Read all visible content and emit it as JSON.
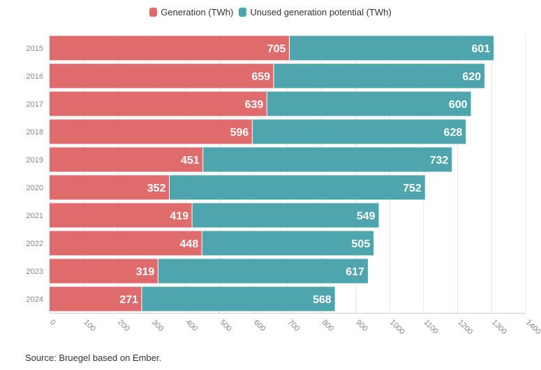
{
  "legend": {
    "generation": "Generation (TWh)",
    "unused": "Unused generation potential (TWh)"
  },
  "colors": {
    "generation": "#e06b6c",
    "unused": "#4fa5ae",
    "axis_text": "#888888",
    "gridline": "#e6e6e6"
  },
  "source": "Source: Bruegel based on Ember.",
  "chart_data": {
    "type": "bar",
    "orientation": "horizontal",
    "stacked": true,
    "categories": [
      "2015",
      "2016",
      "2017",
      "2018",
      "2019",
      "2020",
      "2021",
      "2022",
      "2023",
      "2024"
    ],
    "series": [
      {
        "name": "Generation (TWh)",
        "values": [
          705,
          659,
          639,
          596,
          451,
          352,
          419,
          448,
          319,
          271
        ]
      },
      {
        "name": "Unused generation potential (TWh)",
        "values": [
          601,
          620,
          600,
          628,
          732,
          752,
          549,
          505,
          617,
          568
        ]
      }
    ],
    "xlim": [
      0,
      1400
    ],
    "xticks": [
      "0",
      "100",
      "200",
      "300",
      "400",
      "500",
      "600",
      "700",
      "800",
      "900",
      "1000",
      "1100",
      "1200",
      "1300",
      "1400"
    ],
    "grid": true,
    "legend_position": "top"
  }
}
